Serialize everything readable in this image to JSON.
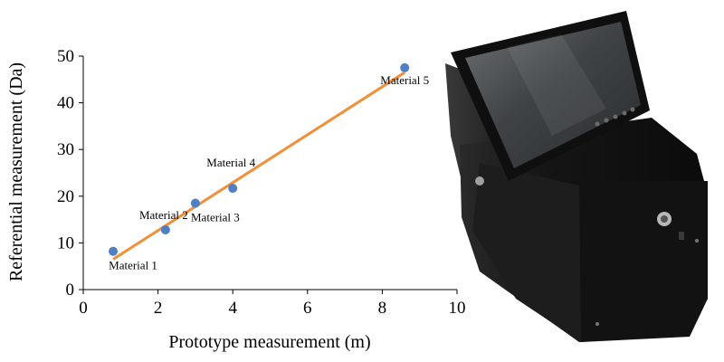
{
  "chart_data": {
    "type": "scatter",
    "xlabel": "Prototype measurement (m)",
    "ylabel": "Referential measurement (Da)",
    "xlim": [
      0,
      10
    ],
    "ylim": [
      0,
      50
    ],
    "xticks": [
      0,
      2,
      4,
      6,
      8,
      10
    ],
    "yticks": [
      0,
      10,
      20,
      30,
      40,
      50
    ],
    "grid": false,
    "points": [
      {
        "label": "Material 1",
        "x": 0.8,
        "y": 8.2
      },
      {
        "label": "Material 2",
        "x": 2.2,
        "y": 12.8
      },
      {
        "label": "Material 3",
        "x": 3.0,
        "y": 18.5
      },
      {
        "label": "Material 4",
        "x": 4.0,
        "y": 21.7
      },
      {
        "label": "Material 5",
        "x": 8.6,
        "y": 47.5
      }
    ],
    "trendline": {
      "x": [
        0.8,
        8.6
      ],
      "y": [
        6.5,
        46.5
      ]
    },
    "colors": {
      "points": "#4f7fc4",
      "trendline": "#f0913a",
      "axis": "#000000"
    }
  },
  "device_image": {
    "subject": "portable measurement device with tilted display screen",
    "colors": {
      "body": "#161616",
      "screen": "#4a4e50",
      "bezel": "#0f0f0f"
    }
  }
}
